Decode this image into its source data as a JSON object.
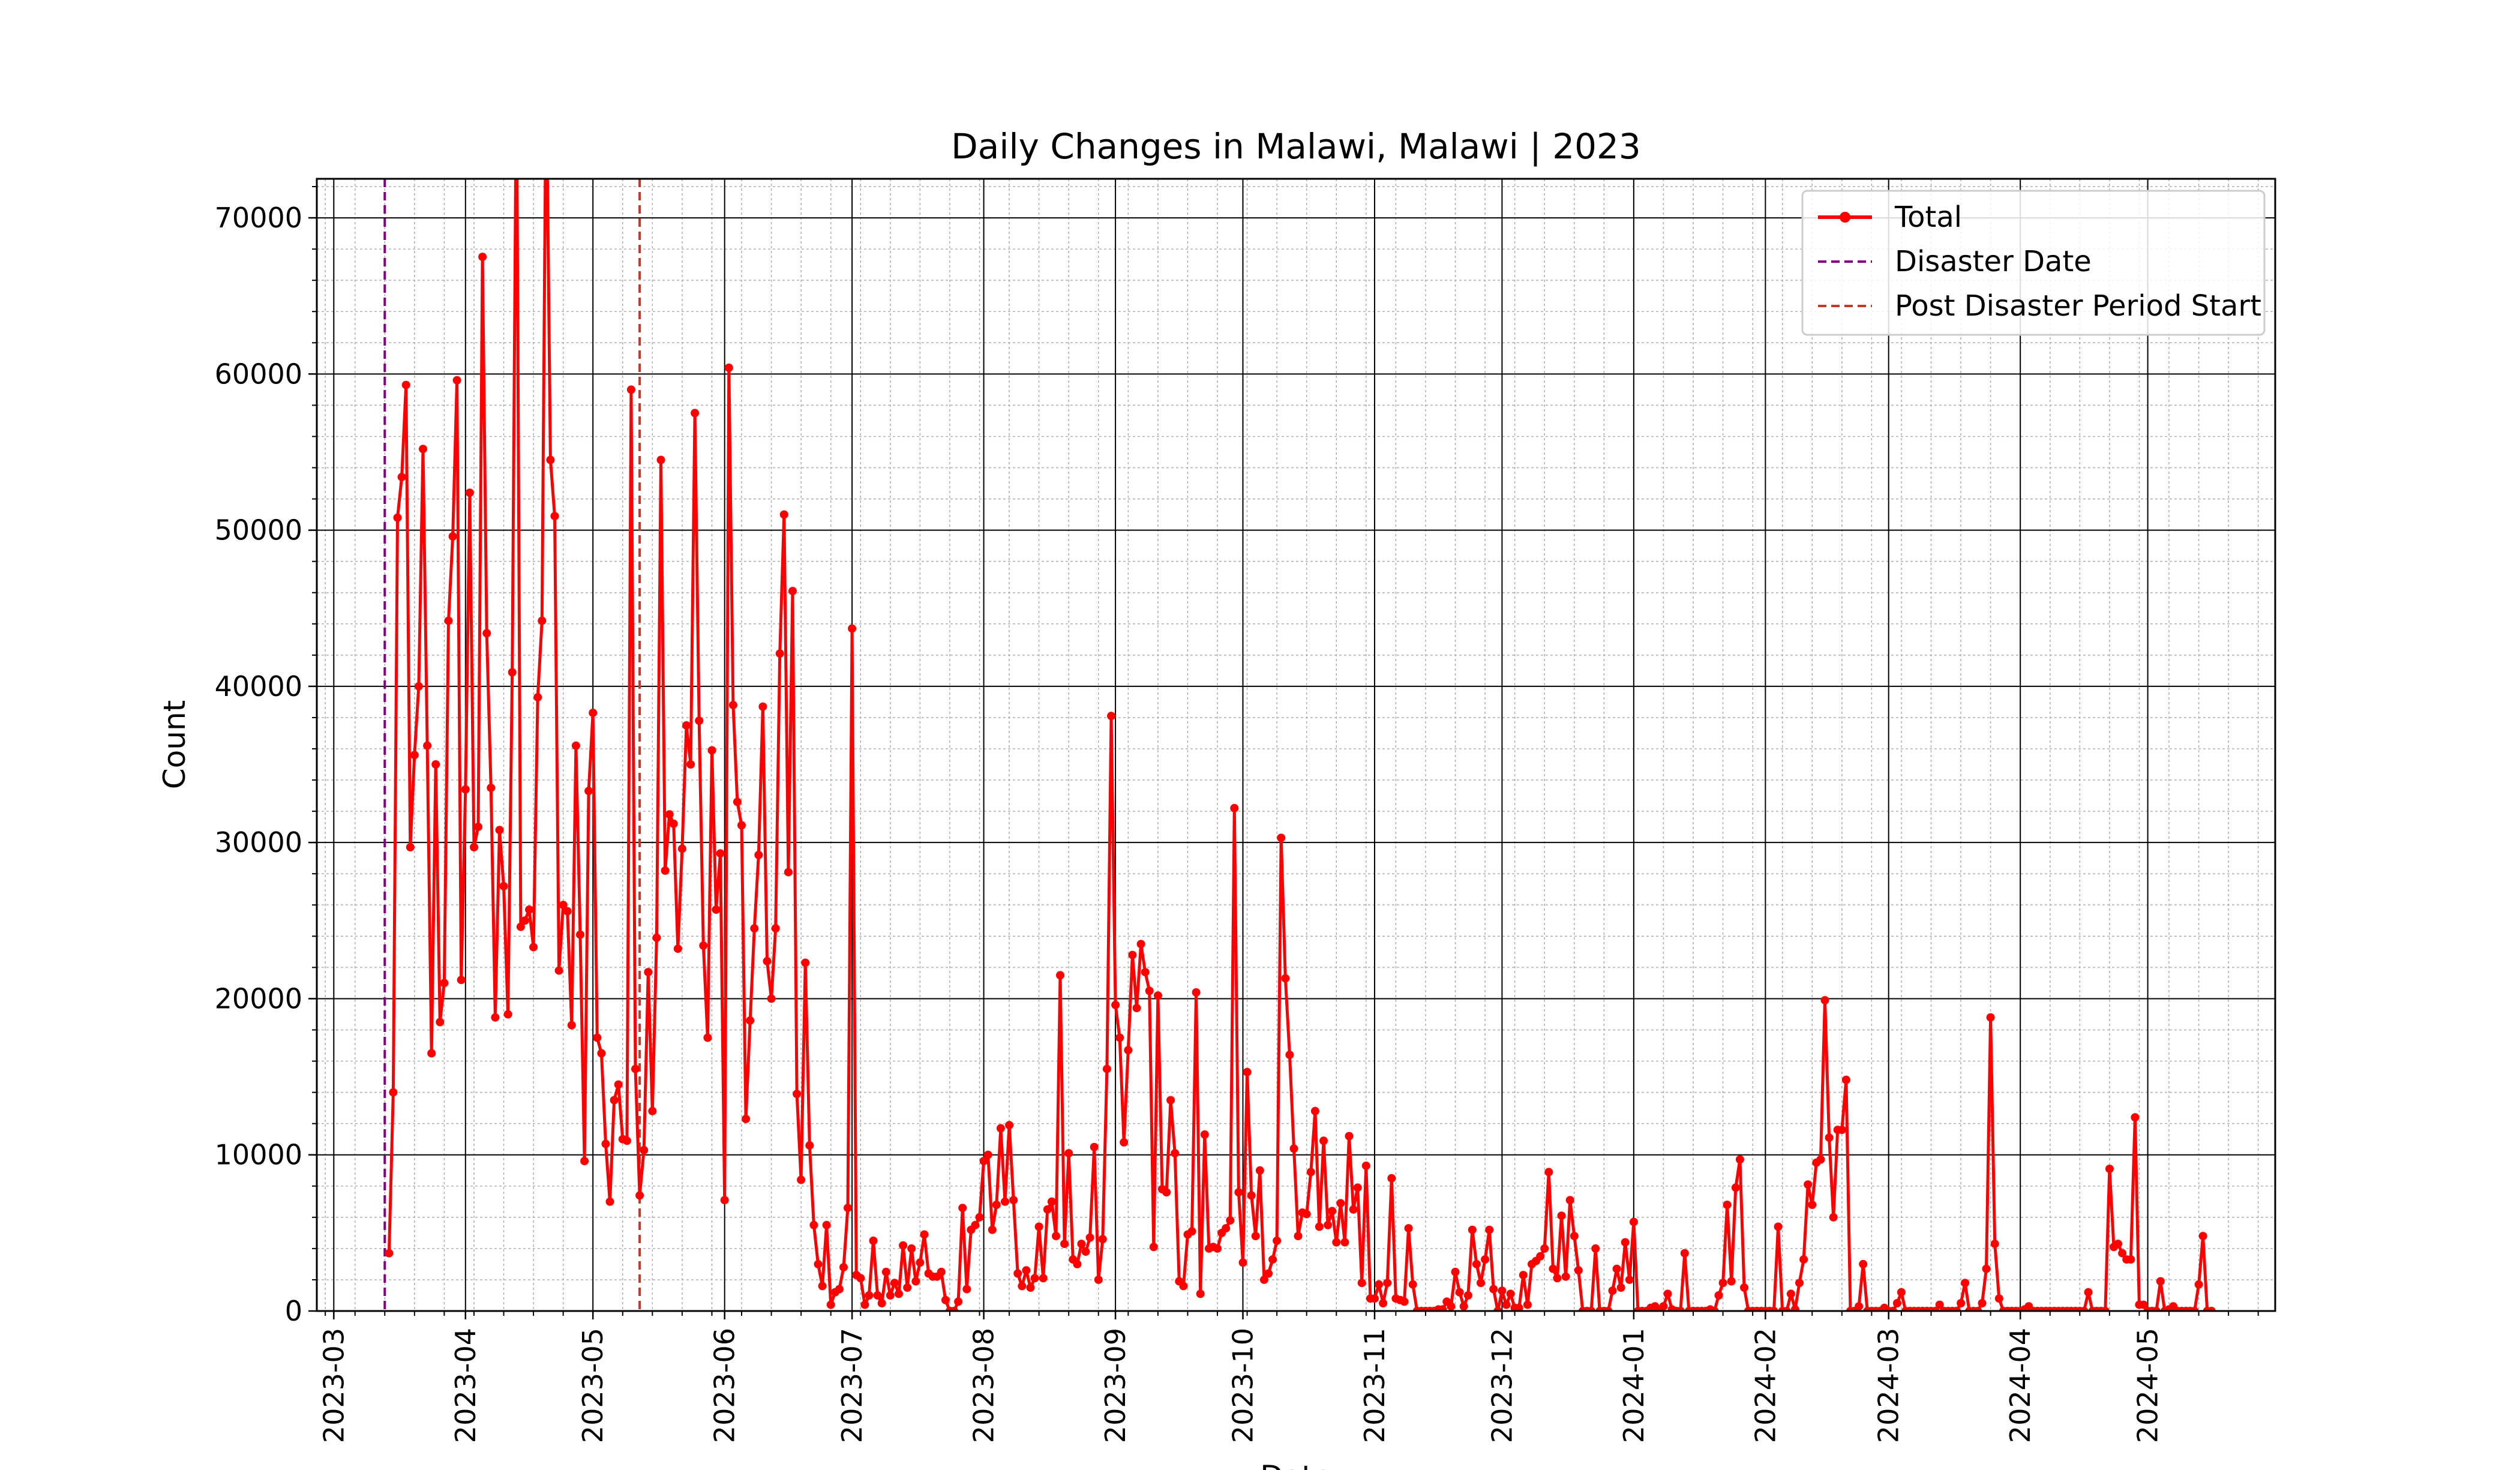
{
  "chart_data": {
    "type": "line",
    "title": "Daily Changes in Malawi, Malawi | 2023",
    "xlabel": "Date",
    "ylabel": "Count",
    "xlim": [
      "2023-02-25",
      "2024-05-31"
    ],
    "ylim": [
      0,
      72500
    ],
    "y_ticks": [
      0,
      10000,
      20000,
      30000,
      40000,
      50000,
      60000,
      70000
    ],
    "x_tick_labels": [
      "2023-03",
      "2023-04",
      "2023-05",
      "2023-06",
      "2023-07",
      "2023-08",
      "2023-09",
      "2023-10",
      "2023-11",
      "2023-12",
      "2024-01",
      "2024-02",
      "2024-03",
      "2024-04",
      "2024-05"
    ],
    "grid": true,
    "legend_position": "top-right",
    "legend": [
      "Total",
      "Disaster Date",
      "Post Disaster Period Start"
    ],
    "colors": {
      "series": "#ff0000",
      "disaster": "#800080",
      "post_disaster": "#c0392b"
    },
    "vlines": [
      {
        "name": "Disaster Date",
        "x": "2023-03-13"
      },
      {
        "name": "Post Disaster Period Start",
        "x": "2023-05-12"
      }
    ],
    "series": [
      {
        "name": "Total",
        "start_date": "2023-03-14",
        "values": [
          3700,
          14000,
          50800,
          53400,
          59300,
          29700,
          35600,
          40000,
          55200,
          36200,
          16500,
          35000,
          18500,
          21000,
          44200,
          49600,
          59600,
          21200,
          33400,
          52400,
          29700,
          31000,
          67500,
          43400,
          33500,
          18800,
          30800,
          27200,
          19000,
          40900,
          80000,
          24600,
          25000,
          25700,
          23300,
          39300,
          44200,
          80000,
          54500,
          50900,
          21800,
          26000,
          25600,
          18300,
          36200,
          24100,
          9600,
          33300,
          38300,
          17500,
          16500,
          10700,
          7000,
          13500,
          14500,
          11000,
          10900,
          59000,
          15500,
          7400,
          10300,
          21700,
          12800,
          23900,
          54500,
          28200,
          31800,
          31200,
          23200,
          29600,
          37500,
          35000,
          57500,
          37800,
          23400,
          17500,
          35900,
          25700,
          29300,
          7100,
          60400,
          38800,
          32600,
          31100,
          12300,
          18600,
          24500,
          29200,
          38700,
          22400,
          20000,
          24500,
          42100,
          51000,
          28100,
          46100,
          13900,
          8400,
          22300,
          10600,
          5500,
          3000,
          1600,
          5500,
          400,
          1200,
          1400,
          2800,
          6600,
          43700,
          2300,
          2100,
          400,
          1000,
          4500,
          1000,
          500,
          2500,
          1000,
          1800,
          1100,
          4200,
          1500,
          4000,
          1900,
          3100,
          4900,
          2400,
          2200,
          2200,
          2500,
          700,
          0,
          0,
          600,
          6600,
          1400,
          5200,
          5500,
          6000,
          9600,
          10000,
          5200,
          6800,
          11700,
          7000,
          11900,
          7100,
          2400,
          1600,
          2600,
          1500,
          2100,
          5400,
          2100,
          6500,
          7000,
          4800,
          21500,
          4300,
          10100,
          3300,
          3000,
          4300,
          3800,
          4700,
          10500,
          2000,
          4600,
          15500,
          38100,
          19600,
          17500,
          10800,
          16700,
          22800,
          19400,
          23500,
          21700,
          20500,
          4100,
          20200,
          7800,
          7600,
          13500,
          10100,
          1900,
          1600,
          4900,
          5100,
          20400,
          1100,
          11300,
          4000,
          4100,
          4000,
          5000,
          5300,
          5800,
          32200,
          7600,
          3100,
          15300,
          7400,
          4800,
          9000,
          2000,
          2400,
          3300,
          4500,
          30300,
          21300,
          16400,
          10400,
          4800,
          6300,
          6200,
          8900,
          12800,
          5400,
          10900,
          5500,
          6400,
          4400,
          6900,
          4400,
          11200,
          6500,
          7900,
          1800,
          9300,
          800,
          800,
          1700,
          500,
          1800,
          8500,
          800,
          700,
          600,
          5300,
          1700,
          0,
          0,
          0,
          0,
          0,
          100,
          100,
          600,
          300,
          2500,
          1200,
          300,
          1000,
          5200,
          3000,
          1800,
          3300,
          5200,
          1400,
          0,
          1300,
          400,
          1100,
          200,
          200,
          2300,
          400,
          3000,
          3200,
          3500,
          4000,
          8900,
          2700,
          2100,
          6100,
          2200,
          7100,
          4800,
          2600,
          0,
          0,
          0,
          4000,
          0,
          0,
          0,
          1300,
          2700,
          1500,
          4400,
          2000,
          5700,
          0,
          0,
          0,
          200,
          300,
          0,
          300,
          1100,
          100,
          0,
          0,
          3700,
          0,
          0,
          0,
          0,
          0,
          100,
          0,
          1000,
          1800,
          6800,
          1900,
          7900,
          9700,
          1500,
          0,
          0,
          0,
          0,
          0,
          0,
          0,
          5400,
          0,
          0,
          1100,
          100,
          1800,
          3300,
          8100,
          6800,
          9500,
          9700,
          19900,
          11100,
          6000,
          11600,
          11600,
          14800,
          0,
          0,
          300,
          3000,
          0,
          0,
          0,
          0,
          200,
          0,
          0,
          500,
          1200,
          0,
          0,
          0,
          0,
          0,
          0,
          0,
          0,
          400,
          0,
          0,
          0,
          0,
          500,
          1800,
          0,
          0,
          0,
          500,
          2700,
          18800,
          4300,
          800,
          0,
          0,
          0,
          0,
          0,
          100,
          300,
          0,
          0,
          0,
          0,
          0,
          0,
          0,
          0,
          0,
          0,
          0,
          0,
          0,
          1200,
          0,
          0,
          0,
          0,
          9100,
          4100,
          4300,
          3700,
          3300,
          3300,
          12400,
          400,
          400,
          0,
          0,
          0,
          1900,
          0,
          100,
          300,
          0,
          0,
          0,
          0,
          0,
          1700,
          4800,
          0,
          0
        ]
      }
    ]
  }
}
